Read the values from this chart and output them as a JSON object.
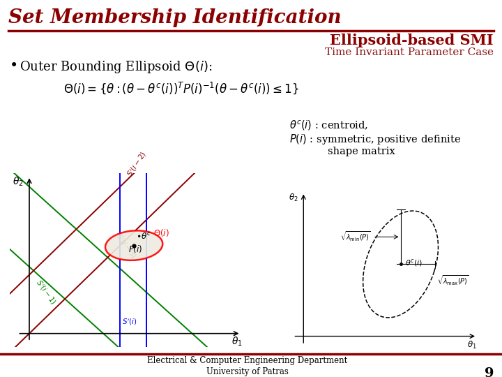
{
  "title": "Set Membership Identification",
  "subtitle": "Ellipsoid-based SMI",
  "subtitle2": "Time Invariant Parameter Case",
  "footer1": "Electrical & Computer Engineering Department",
  "footer2": "University of Patras",
  "page": "9",
  "title_color": "#8B0000",
  "subtitle_color": "#8B0000",
  "subtitle2_color": "#8B1414",
  "divider_color": "#8B0000",
  "background_color": "#FFFFFF"
}
